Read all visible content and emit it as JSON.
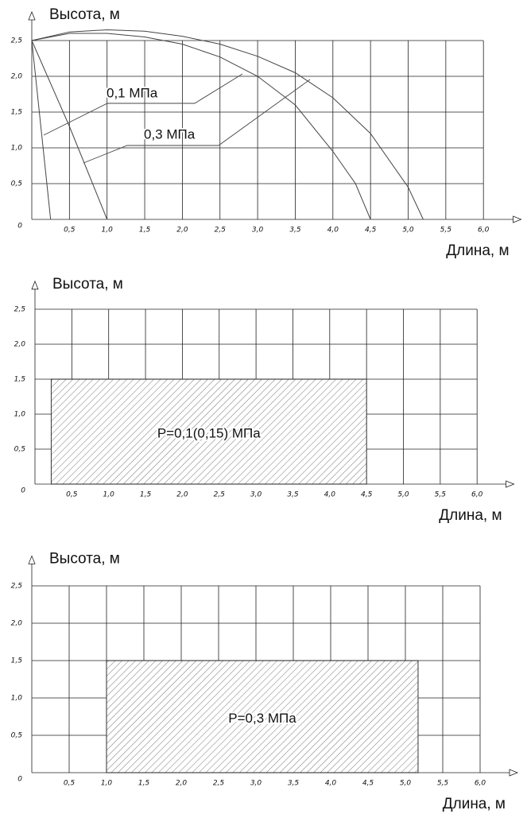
{
  "chart_data": [
    {
      "type": "line",
      "y_label": "Высота, м",
      "x_label": "Длина, м",
      "grid": true,
      "xlim": [
        0,
        6.5
      ],
      "ylim": [
        0,
        2.9
      ],
      "xticks": [
        {
          "value": 0.5,
          "label": "0,5"
        },
        {
          "value": 1.0,
          "label": "1,0"
        },
        {
          "value": 1.5,
          "label": "1,5"
        },
        {
          "value": 2.0,
          "label": "2,0"
        },
        {
          "value": 2.5,
          "label": "2,5"
        },
        {
          "value": 3.0,
          "label": "3,0"
        },
        {
          "value": 3.5,
          "label": "3,5"
        },
        {
          "value": 4.0,
          "label": "4,0"
        },
        {
          "value": 4.5,
          "label": "4,5"
        },
        {
          "value": 5.0,
          "label": "5,0"
        },
        {
          "value": 5.5,
          "label": "5,5"
        },
        {
          "value": 6.0,
          "label": "6,0"
        }
      ],
      "yticks": [
        0,
        {
          "value": 0.5,
          "label": "0,5"
        },
        {
          "value": 1.0,
          "label": "1,0"
        },
        {
          "value": 1.5,
          "label": "1,5"
        },
        {
          "value": 2.0,
          "label": "2,0"
        },
        {
          "value": 2.5,
          "label": "2,5"
        }
      ],
      "annotations": [
        "0,1 МПа",
        "0,3 МПа"
      ],
      "series": [
        {
          "color": "#444",
          "x": [
            0,
            0.5,
            1.0,
            1.5,
            2.0,
            2.5,
            3.0,
            3.5,
            4.0,
            4.5,
            5.0,
            5.2
          ],
          "values": [
            2.5,
            2.62,
            2.65,
            2.63,
            2.56,
            2.45,
            2.28,
            2.05,
            1.7,
            1.2,
            0.45,
            0
          ]
        },
        {
          "color": "#444",
          "x": [
            0,
            0.5,
            1.0,
            1.5,
            2.0,
            2.5,
            3.0,
            3.5,
            4.0,
            4.3,
            4.5
          ],
          "values": [
            2.5,
            2.6,
            2.6,
            2.55,
            2.45,
            2.27,
            2.0,
            1.6,
            0.95,
            0.5,
            0
          ]
        },
        {
          "color": "#444",
          "x": [
            0,
            0.25
          ],
          "values": [
            2.5,
            0
          ]
        },
        {
          "color": "#444",
          "x": [
            0,
            0.5,
            1.0
          ],
          "values": [
            2.5,
            1.3,
            0
          ]
        }
      ]
    },
    {
      "type": "area",
      "y_label": "Высота, м",
      "x_label": "Длина, м",
      "grid": true,
      "xlim": [
        0,
        6.5
      ],
      "ylim": [
        0,
        2.9
      ],
      "xticks": [
        {
          "value": 0.5,
          "label": "0,5"
        },
        {
          "value": 1.0,
          "label": "1,0"
        },
        {
          "value": 1.5,
          "label": "1,5"
        },
        {
          "value": 2.0,
          "label": "2,0"
        },
        {
          "value": 2.5,
          "label": "2,5"
        },
        {
          "value": 3.0,
          "label": "3,0"
        },
        {
          "value": 3.5,
          "label": "3,5"
        },
        {
          "value": 4.0,
          "label": "4,0"
        },
        {
          "value": 4.5,
          "label": "4,5"
        },
        {
          "value": 5.0,
          "label": "5,0"
        },
        {
          "value": 5.5,
          "label": "5,5"
        },
        {
          "value": 6.0,
          "label": "6,0"
        }
      ],
      "yticks": [
        0,
        {
          "value": 0.5,
          "label": "0,5"
        },
        {
          "value": 1.0,
          "label": "1,0"
        },
        {
          "value": 1.5,
          "label": "1,5"
        },
        {
          "value": 2.0,
          "label": "2,0"
        },
        {
          "value": 2.5,
          "label": "2,5"
        }
      ],
      "annotation": "P=0,1(0,15) МПа",
      "x": [
        0.22,
        4.5
      ],
      "values": [
        1.5,
        1.5
      ]
    },
    {
      "type": "area",
      "y_label": "Высота, м",
      "x_label": "Длина, м",
      "grid": true,
      "xlim": [
        0,
        6.5
      ],
      "ylim": [
        0,
        2.9
      ],
      "xticks": [
        {
          "value": 0.5,
          "label": "0,5"
        },
        {
          "value": 1.0,
          "label": "1,0"
        },
        {
          "value": 1.5,
          "label": "1,5"
        },
        {
          "value": 2.0,
          "label": "2,0"
        },
        {
          "value": 2.5,
          "label": "2,5"
        },
        {
          "value": 3.0,
          "label": "3,0"
        },
        {
          "value": 3.5,
          "label": "3,5"
        },
        {
          "value": 4.0,
          "label": "4,0"
        },
        {
          "value": 4.5,
          "label": "4,5"
        },
        {
          "value": 5.0,
          "label": "5,0"
        },
        {
          "value": 5.5,
          "label": "5,5"
        },
        {
          "value": 6.0,
          "label": "6,0"
        }
      ],
      "yticks": [
        0,
        {
          "value": 0.5,
          "label": "0,5"
        },
        {
          "value": 1.0,
          "label": "1,0"
        },
        {
          "value": 1.5,
          "label": "1,5"
        },
        {
          "value": 2.0,
          "label": "2,0"
        },
        {
          "value": 2.5,
          "label": "2,5"
        }
      ],
      "annotation": "P=0,3 МПа",
      "x": [
        1.0,
        5.17
      ],
      "values": [
        1.5,
        1.5
      ]
    }
  ]
}
